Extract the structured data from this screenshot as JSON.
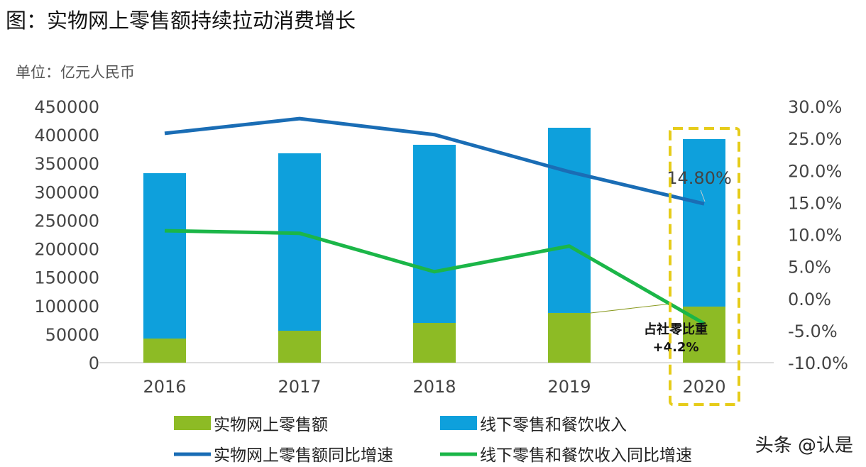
{
  "title": "图：实物网上零售额持续拉动消费增长",
  "unit_label": "单位：亿元人民币",
  "watermark": "头条 @认是",
  "chart_data": {
    "type": "bar",
    "stacked": true,
    "categories": [
      "2016",
      "2017",
      "2018",
      "2019",
      "2020"
    ],
    "series": [
      {
        "name": "实物网上零售额",
        "kind": "bar",
        "axis": "left",
        "color": "#8dbb25",
        "values": [
          42400,
          56100,
          69800,
          87300,
          98500
        ]
      },
      {
        "name": "线下零售和餐饮收入",
        "kind": "bar",
        "axis": "left",
        "color": "#0ea0dc",
        "values": [
          290400,
          311600,
          312900,
          325300,
          294200
        ]
      },
      {
        "name": "实物网上零售额同比增速",
        "kind": "line",
        "axis": "right",
        "color": "#1a6db5",
        "values": [
          25.8,
          28.1,
          25.6,
          19.8,
          14.8
        ]
      },
      {
        "name": "线下零售和餐饮收入同比增速",
        "kind": "line",
        "axis": "right",
        "color": "#1bb648",
        "values": [
          10.6,
          10.2,
          4.2,
          8.2,
          -3.9
        ]
      }
    ],
    "left_axis": {
      "range": [
        0,
        450000
      ],
      "ticks": [
        "0",
        "50000",
        "100000",
        "150000",
        "200000",
        "250000",
        "300000",
        "350000",
        "400000",
        "450000"
      ]
    },
    "right_axis": {
      "range": [
        -10,
        30
      ],
      "ticks": [
        "-10.0%",
        "-5.0%",
        "0.0%",
        "5.0%",
        "10.0%",
        "15.0%",
        "20.0%",
        "25.0%",
        "30.0%"
      ]
    },
    "annotations": {
      "line_label": "14.80%",
      "share_label_line1": "占社零比重",
      "share_label_line2": "+4.2%",
      "highlight_category": "2020",
      "highlight_color": "#e6cc1a"
    },
    "legend_placement": "bottom",
    "grid": false
  }
}
